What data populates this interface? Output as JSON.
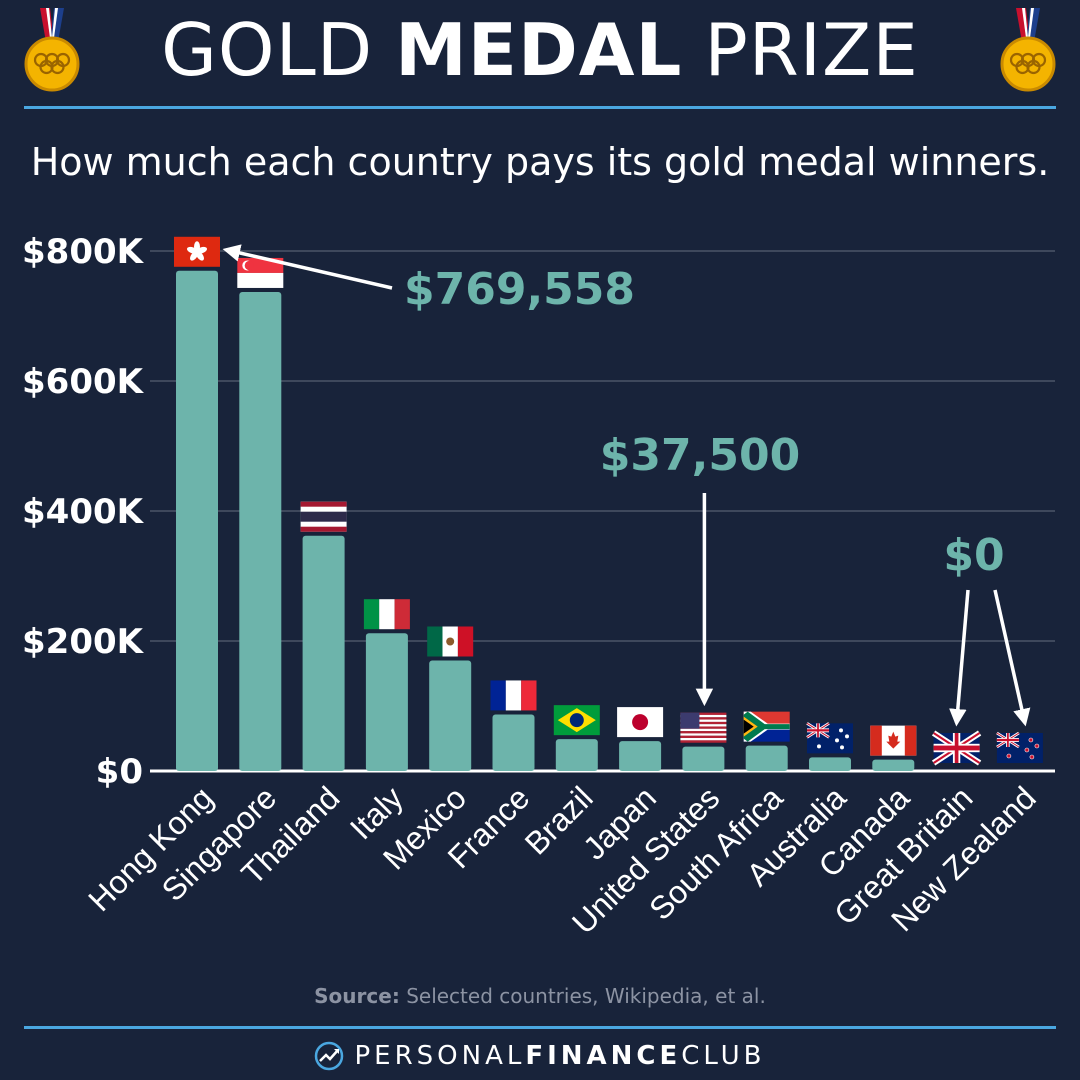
{
  "header": {
    "title_part1": "GOLD",
    "title_part2": "MEDAL",
    "title_part3": "PRIZE",
    "subtitle": "How much each country pays its gold medal winners."
  },
  "colors": {
    "background": "#18233a",
    "bar": "#6db4ab",
    "accent_text": "#6db4ab",
    "rule": "#4aa7e0",
    "grid": "#4a5468"
  },
  "chart_data": {
    "type": "bar",
    "title": "",
    "xlabel": "",
    "ylabel": "",
    "ylim": [
      0,
      800000
    ],
    "yticks": [
      0,
      200000,
      400000,
      600000,
      800000
    ],
    "ytick_labels": [
      "$0",
      "$200K",
      "$400K",
      "$600K",
      "$800K"
    ],
    "grid": true,
    "categories": [
      "Hong Kong",
      "Singapore",
      "Thailand",
      "Italy",
      "Mexico",
      "France",
      "Brazil",
      "Japan",
      "United States",
      "South Africa",
      "Australia",
      "Canada",
      "Great Britain",
      "New Zealand"
    ],
    "values": [
      769558,
      737000,
      362000,
      212000,
      170000,
      87000,
      49000,
      46000,
      37500,
      39000,
      21000,
      17500,
      0,
      0
    ],
    "flags": [
      "hong-kong",
      "singapore",
      "thailand",
      "italy",
      "mexico",
      "france",
      "brazil",
      "japan",
      "united-states",
      "south-africa",
      "australia",
      "canada",
      "great-britain",
      "new-zealand"
    ],
    "annotations": [
      {
        "text": "$769,558",
        "category": "Hong Kong"
      },
      {
        "text": "$37,500",
        "category": "United States"
      },
      {
        "text": "$0",
        "categories": [
          "Great Britain",
          "New Zealand"
        ]
      }
    ]
  },
  "footer": {
    "source_label": "Source:",
    "source_text": "Selected countries, Wikipedia, et al.",
    "brand_part1": "PERSONAL",
    "brand_part2": "FINANCE",
    "brand_part3": "CLUB"
  }
}
